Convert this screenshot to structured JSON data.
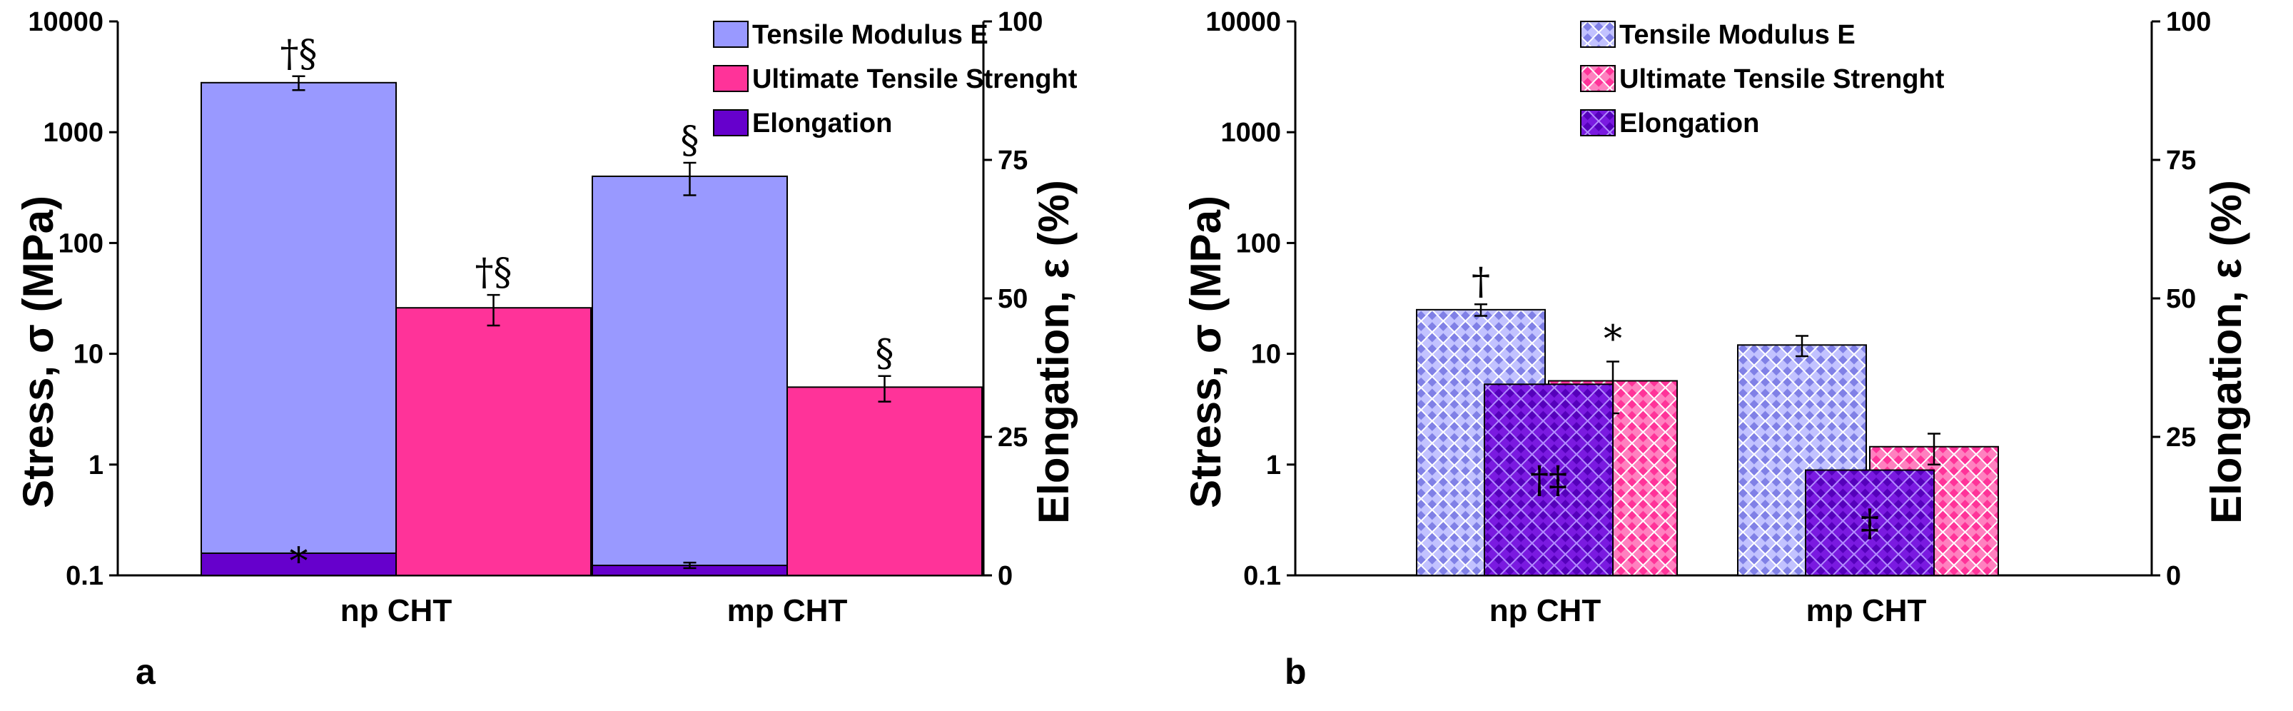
{
  "colors": {
    "modulus": "#9999ff",
    "uts": "#ff3399",
    "elongation": "#6600cc",
    "hatch_light": "#e6e6ff",
    "hatch_pink": "#ffe6f2"
  },
  "chart_data": [
    {
      "type": "bar",
      "panel": "a",
      "pattern": "solid",
      "categories": [
        "np CHT",
        "mp CHT"
      ],
      "ylabel": "Stress, σ  (MPa)",
      "y2label": "Elongation, ε  (%)",
      "yscale": "log",
      "ylim": [
        0.1,
        10000
      ],
      "y_ticks": [
        "0.1",
        "1",
        "10",
        "100",
        "1000",
        "10000"
      ],
      "y2lim": [
        0,
        100
      ],
      "y2_ticks": [
        "0",
        "25",
        "50",
        "75",
        "100"
      ],
      "legend": [
        "Tensile Modulus E",
        "Ultimate Tensile Strenght",
        "Elongation"
      ],
      "series": [
        {
          "name": "Tensile Modulus E",
          "axis": "left",
          "values": [
            2800,
            400
          ],
          "errors": [
            400,
            130
          ],
          "annotations": [
            "†§",
            "§"
          ]
        },
        {
          "name": "Ultimate Tensile Strenght",
          "axis": "left",
          "values": [
            26,
            5
          ],
          "errors": [
            8,
            1.3
          ],
          "annotations": [
            "†§",
            "§"
          ]
        },
        {
          "name": "Elongation",
          "axis": "right",
          "values": [
            4,
            1.8
          ],
          "errors": [
            0,
            0.5
          ],
          "annotations": [
            "*",
            ""
          ]
        }
      ]
    },
    {
      "type": "bar",
      "panel": "b",
      "pattern": "hatched",
      "categories": [
        "np CHT",
        "mp CHT"
      ],
      "ylabel": "Stress, σ  (MPa)",
      "y2label": "Elongation, ε  (%)",
      "yscale": "log",
      "ylim": [
        0.1,
        10000
      ],
      "y_ticks": [
        "0.1",
        "1",
        "10",
        "100",
        "1000",
        "10000"
      ],
      "y2lim": [
        0,
        100
      ],
      "y2_ticks": [
        "0",
        "25",
        "50",
        "75",
        "100"
      ],
      "legend": [
        "Tensile Modulus E",
        "Ultimate Tensile Strenght",
        "Elongation"
      ],
      "series": [
        {
          "name": "Tensile Modulus E",
          "axis": "left",
          "values": [
            25,
            12
          ],
          "errors": [
            3,
            2.5
          ],
          "annotations": [
            "†",
            ""
          ]
        },
        {
          "name": "Ultimate Tensile Strenght",
          "axis": "left",
          "values": [
            5.7,
            1.45
          ],
          "errors": [
            2.8,
            0.45
          ],
          "annotations": [
            "*",
            ""
          ]
        },
        {
          "name": "Elongation",
          "axis": "right",
          "values": [
            34.5,
            19
          ],
          "errors": [
            0,
            0
          ],
          "annotations": [
            "†‡",
            "‡"
          ]
        }
      ]
    }
  ]
}
